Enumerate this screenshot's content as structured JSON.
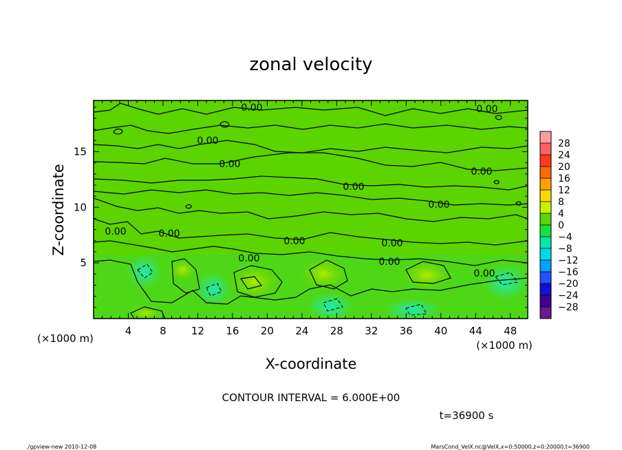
{
  "chart_data": {
    "type": "heatmap",
    "title": "zonal velocity",
    "xlabel": "X-coordinate",
    "ylabel": "Z-coordinate",
    "x_unit": "(×1000 m)",
    "y_unit": "(×1000 m)",
    "xlim": [
      0,
      50
    ],
    "ylim": [
      0,
      19.6
    ],
    "x_ticks": [
      4,
      8,
      12,
      16,
      20,
      24,
      28,
      32,
      36,
      40,
      44,
      48
    ],
    "y_ticks": [
      5,
      10,
      15
    ],
    "contour_label": "0.00",
    "contour_interval_text": "CONTOUR INTERVAL = 6.000E+00",
    "time_text": "t=36900 s",
    "colorbar": {
      "levels": [
        28,
        24,
        20,
        16,
        12,
        8,
        4,
        0,
        -4,
        -8,
        -12,
        -16,
        -20,
        -24,
        -28
      ],
      "labels": [
        "28",
        "24",
        "20",
        "16",
        "12",
        "8",
        "4",
        "0",
        "−4",
        "−8",
        "−12",
        "−16",
        "−20",
        "−24",
        "−28"
      ],
      "colors": [
        "#ff9c9c",
        "#ff6060",
        "#ff3a1c",
        "#ff6a00",
        "#ffa000",
        "#ffd800",
        "#c8f000",
        "#5cd400",
        "#16e03a",
        "#00e8a8",
        "#00d8e8",
        "#00a0ff",
        "#2850ff",
        "#1010d8",
        "#400090",
        "#6c1890"
      ]
    }
  },
  "footer": {
    "left": "./gpview-new   2010-12-08",
    "right": "MarsCond_VelX.nc@VelX,x=0:50000,z=0:20000,t=36900"
  }
}
